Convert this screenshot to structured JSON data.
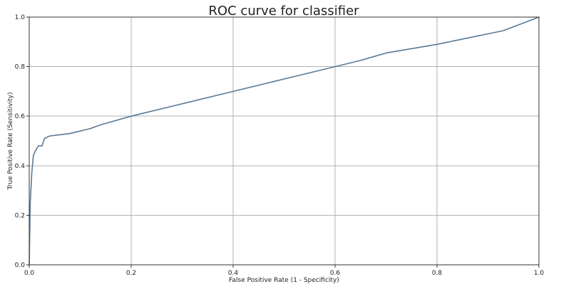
{
  "chart_data": {
    "type": "line",
    "title": "ROC curve for classifier",
    "xlabel": "False Positive Rate (1 - Specificity)",
    "ylabel": "True Positive Rate (Sensitivity)",
    "xlim": [
      0.0,
      1.0
    ],
    "ylim": [
      0.0,
      1.0
    ],
    "xticks": [
      0.0,
      0.2,
      0.4,
      0.6,
      0.8,
      1.0
    ],
    "yticks": [
      0.0,
      0.2,
      0.4,
      0.6,
      0.8,
      1.0
    ],
    "xtick_labels": [
      "0.0",
      "0.2",
      "0.4",
      "0.6",
      "0.8",
      "1.0"
    ],
    "ytick_labels": [
      "0.0",
      "0.2",
      "0.4",
      "0.6",
      "0.8",
      "1.0"
    ],
    "grid": true,
    "line_color": "#5b7a95",
    "series": [
      {
        "x": [
          0.0,
          0.002,
          0.005,
          0.008,
          0.012,
          0.018,
          0.025,
          0.03,
          0.04,
          0.06,
          0.08,
          0.12,
          0.14,
          0.2,
          0.3,
          0.4,
          0.5,
          0.6,
          0.65,
          0.7,
          0.8,
          0.93,
          1.0
        ],
        "y": [
          0.0,
          0.25,
          0.37,
          0.44,
          0.46,
          0.48,
          0.48,
          0.51,
          0.52,
          0.525,
          0.53,
          0.55,
          0.565,
          0.6,
          0.65,
          0.7,
          0.75,
          0.8,
          0.825,
          0.855,
          0.89,
          0.945,
          1.0
        ]
      }
    ]
  }
}
